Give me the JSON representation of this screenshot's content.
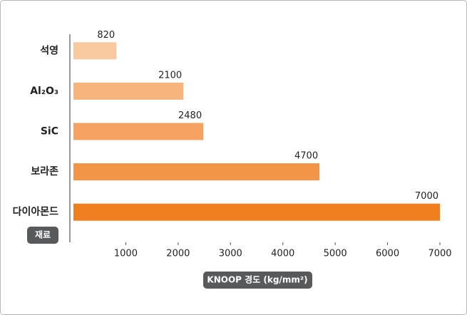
{
  "chart_data": {
    "type": "barh",
    "categories": [
      "석영",
      "Al₂O₃",
      "SiC",
      "보라존",
      "다이아몬드"
    ],
    "values": [
      820,
      2100,
      2480,
      4700,
      7000
    ],
    "colors": [
      "#f9ca9f",
      "#f7b57d",
      "#f5a262",
      "#f39547",
      "#f0801f"
    ],
    "xlim": [
      0,
      7000
    ],
    "xticks": [
      1000,
      2000,
      3000,
      4000,
      5000,
      6000,
      7000
    ],
    "ylabel": "재료",
    "xlabel": "KNOOP 경도 (kg/mm²)"
  }
}
